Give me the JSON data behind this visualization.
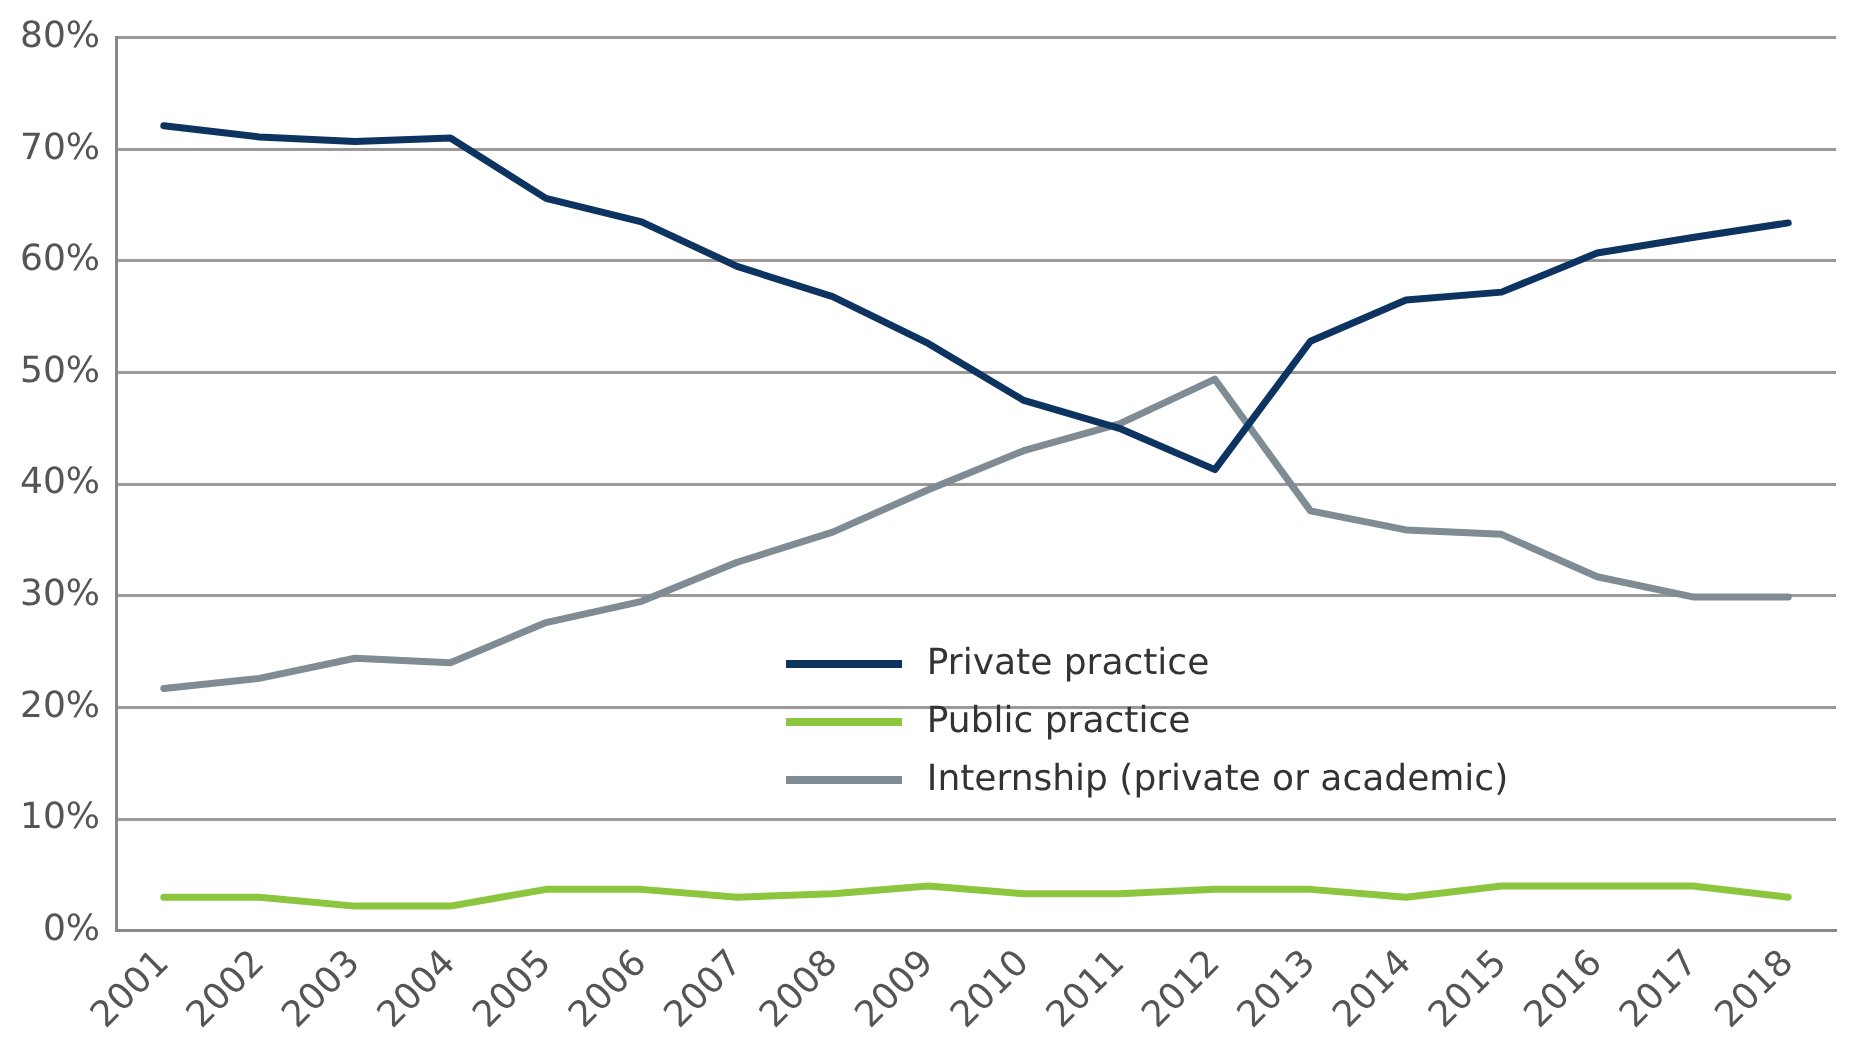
{
  "chart_data": {
    "type": "line",
    "categories": [
      "2001",
      "2002",
      "2003",
      "2004",
      "2005",
      "2006",
      "2007",
      "2008",
      "2009",
      "2010",
      "2011",
      "2012",
      "2013",
      "2014",
      "2015",
      "2016",
      "2017",
      "2018"
    ],
    "series": [
      {
        "name": "Private practice",
        "color": "#0d3461",
        "values": [
          72.1,
          71.1,
          70.7,
          71,
          65.6,
          63.5,
          59.5,
          56.8,
          52.6,
          47.5,
          45,
          41.3,
          52.8,
          56.5,
          57.2,
          60.7,
          62.1,
          63.4
        ]
      },
      {
        "name": "Public practice",
        "color": "#8cc63f",
        "values": [
          3,
          3,
          2.2,
          2.2,
          3.7,
          3.7,
          3,
          3.3,
          4,
          3.3,
          3.3,
          3.7,
          3.7,
          3,
          4,
          4,
          4,
          3
        ]
      },
      {
        "name": "Internship (private or academic)",
        "color": "#7f8c93",
        "values": [
          21.7,
          22.6,
          24.4,
          24,
          27.6,
          29.5,
          33,
          35.7,
          39.5,
          43,
          45.4,
          49.4,
          37.6,
          35.9,
          35.5,
          31.7,
          29.9,
          29.9
        ]
      }
    ],
    "ylim": [
      0,
      80
    ],
    "yticks": [
      {
        "value": 0,
        "label": "0%"
      },
      {
        "value": 10,
        "label": "10%"
      },
      {
        "value": 20,
        "label": "20%"
      },
      {
        "value": 30,
        "label": "30%"
      },
      {
        "value": 40,
        "label": "40%"
      },
      {
        "value": 50,
        "label": "50%"
      },
      {
        "value": 60,
        "label": "60%"
      },
      {
        "value": 70,
        "label": "70%"
      },
      {
        "value": 80,
        "label": "80%"
      }
    ],
    "grid": "y",
    "legend": "bottom",
    "marker": "none",
    "line_style": "solid"
  }
}
